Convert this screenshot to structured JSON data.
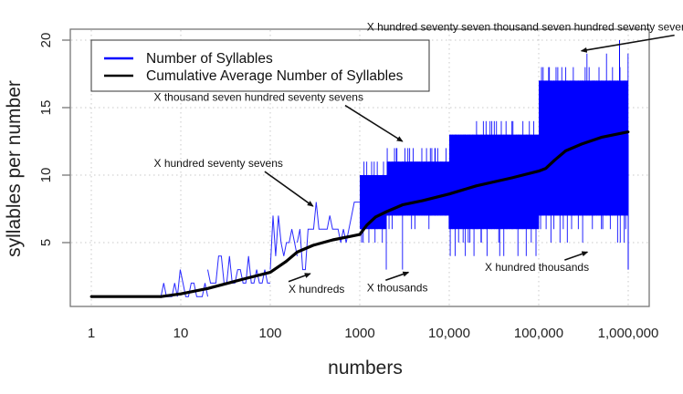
{
  "chart_data": {
    "type": "line",
    "title": "",
    "xlabel": "numbers",
    "ylabel": "syllables per number",
    "x_scale": "log10",
    "xlim": [
      1,
      1000000
    ],
    "ylim": [
      1,
      20
    ],
    "grid": true,
    "x_ticks": [
      {
        "value": 1,
        "label": "1"
      },
      {
        "value": 10,
        "label": "10"
      },
      {
        "value": 100,
        "label": "100"
      },
      {
        "value": 1000,
        "label": "1000"
      },
      {
        "value": 10000,
        "label": "10,000"
      },
      {
        "value": 100000,
        "label": "100,000"
      },
      {
        "value": 1000000,
        "label": "1,000,000"
      }
    ],
    "y_ticks": [
      {
        "value": 5,
        "label": "5"
      },
      {
        "value": 10,
        "label": "10"
      },
      {
        "value": 15,
        "label": "15"
      },
      {
        "value": 20,
        "label": "20"
      }
    ],
    "legend": {
      "placement": "top-left",
      "entries": [
        {
          "label": "Number of Syllables",
          "color": "#0000ff"
        },
        {
          "label": "Cumulative Average Number of Syllables",
          "color": "#000000"
        }
      ]
    },
    "series": [
      {
        "name": "Number of Syllables",
        "color": "#0000ff",
        "bands": [
          {
            "x_from": 1,
            "x_to": 6,
            "low": 1,
            "high": 1,
            "spike_high": 1,
            "spike_low": 1
          },
          {
            "x_from": 6,
            "x_to": 20,
            "low": 1,
            "high": 2,
            "spike_high": 3,
            "spike_low": 1
          },
          {
            "x_from": 20,
            "x_to": 100,
            "low": 2,
            "high": 3,
            "spike_high": 4,
            "spike_low": 2
          },
          {
            "x_from": 100,
            "x_to": 200,
            "low": 4,
            "high": 6,
            "spike_high": 7,
            "spike_low": 3
          },
          {
            "x_from": 200,
            "x_to": 1000,
            "low": 5,
            "high": 7,
            "spike_high": 8,
            "spike_low": 3
          },
          {
            "x_from": 1000,
            "x_to": 2000,
            "low": 6,
            "high": 10,
            "spike_high": 11,
            "spike_low": 3
          },
          {
            "x_from": 2000,
            "x_to": 10000,
            "low": 7,
            "high": 11,
            "spike_high": 12,
            "spike_low": 3
          },
          {
            "x_from": 10000,
            "x_to": 100000,
            "low": 6,
            "high": 13,
            "spike_high": 14,
            "spike_low": 4
          },
          {
            "x_from": 100000,
            "x_to": 1000000,
            "low": 7,
            "high": 17,
            "spike_high": 19,
            "spike_low": 5
          }
        ],
        "max": 20,
        "min": 1
      },
      {
        "name": "Cumulative Average Number of Syllables",
        "color": "#000000",
        "x": [
          1,
          6,
          10,
          20,
          50,
          100,
          150,
          200,
          300,
          500,
          1000,
          1200,
          1500,
          2000,
          3000,
          5000,
          10000,
          20000,
          50000,
          100000,
          120000,
          150000,
          200000,
          300000,
          500000,
          1000000
        ],
        "y": [
          1,
          1,
          1.2,
          1.6,
          2.3,
          2.8,
          3.6,
          4.3,
          4.8,
          5.2,
          5.6,
          6.3,
          6.9,
          7.3,
          7.8,
          8.1,
          8.6,
          9.2,
          9.8,
          10.3,
          10.5,
          11.1,
          11.8,
          12.3,
          12.8,
          13.2
        ]
      }
    ],
    "annotations": [
      {
        "text": "X hundreds",
        "x": 160,
        "y": 1.3,
        "arrow_to_x": 280,
        "arrow_to_y": 2.7
      },
      {
        "text": "X hundred seventy sevens",
        "x": 5,
        "y": 10.6,
        "arrow_to_x": 300,
        "arrow_to_y": 7.7
      },
      {
        "text": "X thousands",
        "x": 1200,
        "y": 1.4,
        "arrow_to_x": 3500,
        "arrow_to_y": 2.8
      },
      {
        "text": "X thousand seven hundred seventy sevens",
        "x": 5,
        "y": 15.5,
        "arrow_to_x": 3000,
        "arrow_to_y": 12.5
      },
      {
        "text": "X hundred thousands",
        "x": 25000,
        "y": 2.9,
        "arrow_to_x": 350000,
        "arrow_to_y": 4.3
      },
      {
        "text": "X hundred seventy seven thousand seven hundred seventy sevens",
        "x": 1200,
        "y": 20.7,
        "arrow_to_x": 300000,
        "arrow_to_y": 19.2
      }
    ]
  }
}
